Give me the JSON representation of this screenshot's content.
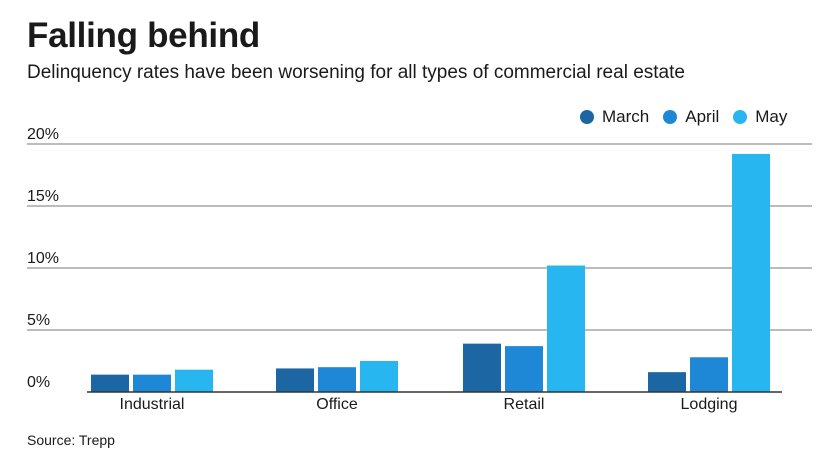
{
  "header": {
    "title": "Falling behind",
    "subtitle": "Delinquency rates have been worsening for all types of commercial real estate"
  },
  "footer": {
    "source": "Source: Trepp"
  },
  "colors": {
    "March": "#1b66a3",
    "April": "#1e88d6",
    "May": "#27b6f0",
    "grid": "#7a7a7a",
    "axis": "#333333"
  },
  "chart_data": {
    "type": "bar",
    "title": "Falling behind",
    "subtitle": "Delinquency rates have been worsening for all types of commercial real estate",
    "xlabel": "",
    "ylabel": "",
    "categories": [
      "Industrial",
      "Office",
      "Retail",
      "Lodging"
    ],
    "series": [
      {
        "name": "March",
        "values": [
          1.4,
          1.9,
          3.9,
          1.6
        ]
      },
      {
        "name": "April",
        "values": [
          1.4,
          2.0,
          3.7,
          2.8
        ]
      },
      {
        "name": "May",
        "values": [
          1.8,
          2.5,
          10.2,
          19.2
        ]
      }
    ],
    "ylim": [
      0,
      20
    ],
    "yticks": [
      0,
      5,
      10,
      15,
      20
    ],
    "ytick_labels": [
      "0%",
      "5%",
      "10%",
      "15%",
      "20%"
    ],
    "grid": true,
    "legend_position": "top-right"
  }
}
